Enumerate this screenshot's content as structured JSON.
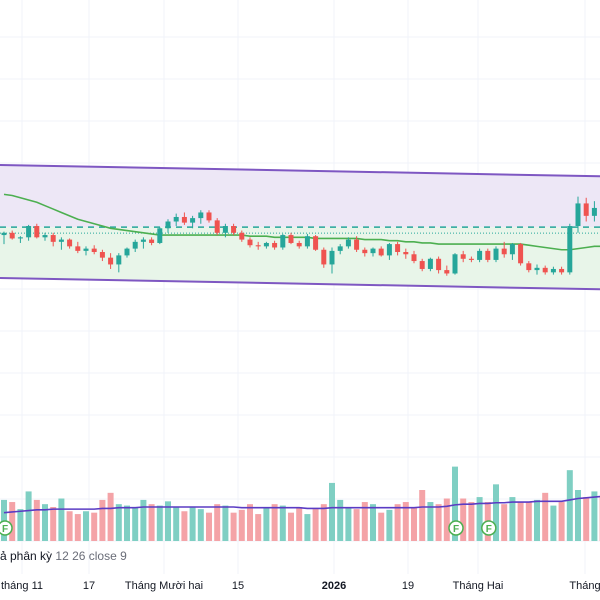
{
  "colors": {
    "up": "#26a69a",
    "down": "#ef5350",
    "up_volume": "#7fcfc3",
    "down_volume": "#f4a3a7",
    "channel_line": "#7e57c2",
    "channel_upper_fill": "#ede7f6",
    "channel_lower_fill": "#e8f5e9",
    "ma": "#4caf50",
    "volume_ma": "#5b3cc4",
    "grid": "#f0f3fa",
    "dividend_marker": "#4caf50"
  },
  "indicator": {
    "name_fragment": "ả phân kỳ",
    "params": "12 26 close 9"
  },
  "time_axis": {
    "labels": [
      "tháng 11",
      "17",
      "Tháng Mười hai",
      "15",
      "2026",
      "19",
      "Tháng Hai",
      "Tháng"
    ],
    "bold_label": "2026"
  },
  "markers": {
    "icon": "dividend-icon",
    "letter": "F",
    "bar_indices": [
      0,
      55,
      59
    ]
  },
  "chart_data": {
    "type": "candlestick",
    "bars": 74,
    "price_range": [
      0,
      100
    ],
    "candles": [
      [
        38,
        41,
        30,
        40
      ],
      [
        40,
        42,
        34,
        35
      ],
      [
        35,
        37,
        31,
        36
      ],
      [
        36,
        47,
        33,
        46
      ],
      [
        46,
        48,
        35,
        36
      ],
      [
        36,
        40,
        33,
        38
      ],
      [
        38,
        40,
        28,
        32
      ],
      [
        32,
        36,
        25,
        34
      ],
      [
        34,
        35,
        26,
        28
      ],
      [
        28,
        32,
        22,
        24
      ],
      [
        24,
        28,
        20,
        26
      ],
      [
        26,
        29,
        21,
        23
      ],
      [
        23,
        25,
        15,
        18
      ],
      [
        18,
        22,
        8,
        12
      ],
      [
        12,
        22,
        5,
        20
      ],
      [
        20,
        27,
        18,
        26
      ],
      [
        26,
        34,
        23,
        32
      ],
      [
        32,
        36,
        26,
        34
      ],
      [
        34,
        36,
        29,
        31
      ],
      [
        31,
        45,
        30,
        44
      ],
      [
        44,
        52,
        40,
        50
      ],
      [
        50,
        57,
        46,
        54
      ],
      [
        54,
        58,
        47,
        49
      ],
      [
        49,
        55,
        44,
        53
      ],
      [
        53,
        60,
        48,
        58
      ],
      [
        58,
        60,
        49,
        51
      ],
      [
        51,
        53,
        38,
        40
      ],
      [
        40,
        48,
        36,
        46
      ],
      [
        46,
        48,
        38,
        40
      ],
      [
        40,
        42,
        32,
        34
      ],
      [
        34,
        36,
        27,
        29
      ],
      [
        29,
        32,
        25,
        28
      ],
      [
        28,
        32,
        26,
        31
      ],
      [
        31,
        33,
        25,
        27
      ],
      [
        27,
        39,
        25,
        38
      ],
      [
        38,
        40,
        30,
        31
      ],
      [
        31,
        33,
        26,
        28
      ],
      [
        28,
        39,
        26,
        37
      ],
      [
        37,
        38,
        24,
        25
      ],
      [
        25,
        27,
        9,
        12
      ],
      [
        12,
        27,
        4,
        24
      ],
      [
        24,
        30,
        21,
        28
      ],
      [
        28,
        36,
        26,
        34
      ],
      [
        34,
        37,
        23,
        25
      ],
      [
        25,
        27,
        19,
        22
      ],
      [
        22,
        27,
        19,
        26
      ],
      [
        26,
        28,
        19,
        20
      ],
      [
        20,
        31,
        16,
        30
      ],
      [
        30,
        32,
        20,
        23
      ],
      [
        23,
        26,
        17,
        21
      ],
      [
        21,
        24,
        13,
        15
      ],
      [
        15,
        17,
        6,
        8
      ],
      [
        8,
        18,
        6,
        17
      ],
      [
        17,
        19,
        4,
        7
      ],
      [
        7,
        11,
        2,
        4
      ],
      [
        4,
        22,
        3,
        21
      ],
      [
        21,
        24,
        14,
        17
      ],
      [
        17,
        19,
        14,
        16
      ],
      [
        16,
        26,
        14,
        24
      ],
      [
        24,
        26,
        14,
        16
      ],
      [
        16,
        28,
        14,
        26
      ],
      [
        26,
        32,
        18,
        21
      ],
      [
        21,
        31,
        16,
        30
      ],
      [
        30,
        31,
        11,
        13
      ],
      [
        13,
        15,
        5,
        7
      ],
      [
        7,
        12,
        3,
        9
      ],
      [
        9,
        11,
        3,
        5
      ],
      [
        5,
        10,
        3,
        8
      ],
      [
        8,
        10,
        3,
        5
      ],
      [
        5,
        48,
        3,
        46
      ],
      [
        46,
        72,
        40,
        66
      ],
      [
        66,
        71,
        50,
        55
      ],
      [
        55,
        68,
        50,
        62
      ],
      [
        62,
        65,
        20,
        24
      ]
    ],
    "ma": [
      74,
      73,
      71,
      69,
      67,
      64,
      61,
      58,
      55,
      52,
      50,
      48,
      46,
      44,
      43,
      42,
      41,
      40,
      39,
      38,
      38,
      38,
      38,
      38,
      38,
      38,
      38,
      38,
      38,
      38,
      37,
      37,
      37,
      36,
      36,
      36,
      36,
      36,
      35,
      35,
      35,
      35,
      35,
      35,
      34,
      34,
      34,
      33,
      33,
      32,
      32,
      31,
      31,
      30,
      30,
      30,
      30,
      30,
      30,
      30,
      30,
      30,
      30,
      30,
      29,
      28,
      27,
      26,
      25,
      25,
      26,
      27,
      28,
      28
    ],
    "channel": {
      "upper": [
        100,
        90
      ],
      "lower": [
        0,
        -10
      ],
      "mid": [
        45,
        45
      ]
    },
    "volume": [
      58,
      55,
      45,
      70,
      58,
      52,
      48,
      60,
      42,
      38,
      42,
      40,
      58,
      68,
      52,
      50,
      48,
      58,
      52,
      50,
      56,
      48,
      42,
      48,
      45,
      40,
      52,
      50,
      40,
      44,
      52,
      38,
      46,
      52,
      50,
      40,
      48,
      38,
      45,
      52,
      82,
      58,
      48,
      45,
      55,
      52,
      40,
      44,
      52,
      55,
      48,
      72,
      55,
      52,
      60,
      105,
      60,
      55,
      62,
      55,
      80,
      52,
      62,
      55,
      55,
      58,
      68,
      50,
      55,
      100,
      72,
      62,
      70,
      62
    ],
    "volume_ma": [
      40,
      41,
      42,
      43,
      44,
      44,
      45,
      45,
      45,
      45,
      45,
      45,
      46,
      46,
      47,
      47,
      47,
      48,
      48,
      48,
      48,
      48,
      48,
      48,
      48,
      48,
      48,
      48,
      48,
      47,
      47,
      47,
      47,
      47,
      47,
      47,
      47,
      46,
      46,
      46,
      47,
      47,
      47,
      47,
      47,
      47,
      47,
      47,
      47,
      47,
      47,
      48,
      48,
      48,
      49,
      51,
      52,
      52,
      53,
      53,
      54,
      54,
      55,
      55,
      55,
      56,
      56,
      56,
      56,
      58,
      60,
      61,
      62,
      63
    ],
    "volume_range": [
      0,
      120
    ]
  }
}
